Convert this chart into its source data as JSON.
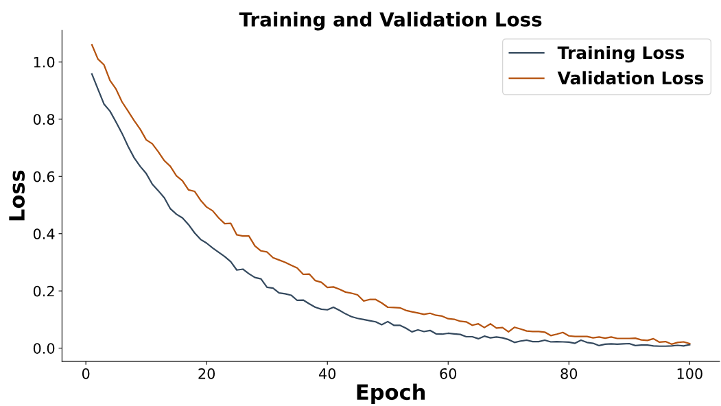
{
  "chart_data": {
    "type": "line",
    "title": "Training and Validation Loss",
    "xlabel": "Epoch",
    "ylabel": "Loss",
    "x": [
      1,
      2,
      3,
      4,
      5,
      6,
      7,
      8,
      9,
      10,
      11,
      12,
      13,
      14,
      15,
      16,
      17,
      18,
      19,
      20,
      21,
      22,
      23,
      24,
      25,
      26,
      27,
      28,
      29,
      30,
      31,
      32,
      33,
      34,
      35,
      36,
      37,
      38,
      39,
      40,
      41,
      42,
      43,
      44,
      45,
      46,
      47,
      48,
      49,
      50,
      51,
      52,
      53,
      54,
      55,
      56,
      57,
      58,
      59,
      60,
      61,
      62,
      63,
      64,
      65,
      66,
      67,
      68,
      69,
      70,
      71,
      72,
      73,
      74,
      75,
      76,
      77,
      78,
      79,
      80,
      81,
      82,
      83,
      84,
      85,
      86,
      87,
      88,
      89,
      90,
      91,
      92,
      93,
      94,
      95,
      96,
      97,
      98,
      99,
      100
    ],
    "series": [
      {
        "name": "Training Loss",
        "color": "#34495e",
        "values": [
          0.958,
          0.905,
          0.853,
          0.828,
          0.79,
          0.75,
          0.705,
          0.665,
          0.635,
          0.61,
          0.573,
          0.55,
          0.525,
          0.487,
          0.468,
          0.455,
          0.432,
          0.403,
          0.38,
          0.367,
          0.35,
          0.335,
          0.32,
          0.302,
          0.273,
          0.276,
          0.26,
          0.247,
          0.242,
          0.213,
          0.21,
          0.193,
          0.19,
          0.185,
          0.167,
          0.168,
          0.155,
          0.143,
          0.136,
          0.134,
          0.143,
          0.132,
          0.12,
          0.11,
          0.104,
          0.1,
          0.096,
          0.092,
          0.082,
          0.093,
          0.08,
          0.08,
          0.07,
          0.057,
          0.064,
          0.058,
          0.062,
          0.05,
          0.049,
          0.052,
          0.05,
          0.048,
          0.04,
          0.04,
          0.033,
          0.042,
          0.036,
          0.039,
          0.036,
          0.03,
          0.02,
          0.025,
          0.028,
          0.023,
          0.023,
          0.028,
          0.022,
          0.023,
          0.022,
          0.021,
          0.017,
          0.028,
          0.02,
          0.017,
          0.009,
          0.014,
          0.015,
          0.014,
          0.015,
          0.016,
          0.009,
          0.011,
          0.011,
          0.008,
          0.007,
          0.007,
          0.008,
          0.01,
          0.008,
          0.012
        ]
      },
      {
        "name": "Validation Loss",
        "color": "#b5530f",
        "values": [
          1.06,
          1.01,
          0.99,
          0.935,
          0.905,
          0.86,
          0.828,
          0.795,
          0.765,
          0.728,
          0.714,
          0.686,
          0.655,
          0.635,
          0.602,
          0.585,
          0.553,
          0.548,
          0.517,
          0.493,
          0.48,
          0.455,
          0.435,
          0.436,
          0.396,
          0.392,
          0.392,
          0.357,
          0.34,
          0.336,
          0.316,
          0.308,
          0.3,
          0.29,
          0.28,
          0.258,
          0.259,
          0.236,
          0.23,
          0.212,
          0.214,
          0.206,
          0.196,
          0.192,
          0.186,
          0.165,
          0.17,
          0.17,
          0.158,
          0.143,
          0.142,
          0.141,
          0.132,
          0.127,
          0.123,
          0.118,
          0.122,
          0.115,
          0.112,
          0.103,
          0.101,
          0.094,
          0.092,
          0.08,
          0.085,
          0.072,
          0.085,
          0.07,
          0.072,
          0.057,
          0.073,
          0.067,
          0.06,
          0.058,
          0.058,
          0.056,
          0.044,
          0.049,
          0.055,
          0.043,
          0.041,
          0.041,
          0.041,
          0.036,
          0.039,
          0.035,
          0.039,
          0.034,
          0.034,
          0.034,
          0.035,
          0.029,
          0.027,
          0.033,
          0.021,
          0.023,
          0.014,
          0.02,
          0.022,
          0.016
        ]
      }
    ],
    "xlim": [
      -3.95,
      104.95
    ],
    "xticks": [
      0,
      20,
      40,
      60,
      80,
      100
    ],
    "ylim": [
      -0.046,
      1.11
    ],
    "yticks": [
      {
        "value": 0,
        "label": "0.0"
      },
      0.2,
      0.4,
      0.6,
      0.8,
      {
        "value": 1,
        "label": "1.0"
      }
    ],
    "grid": false,
    "legend": "top right",
    "marker": "none",
    "line_style": "solid"
  }
}
